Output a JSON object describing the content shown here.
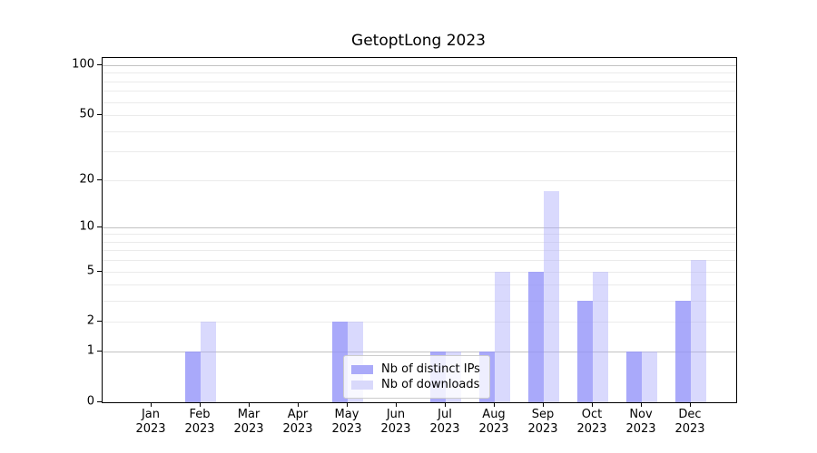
{
  "chart_data": {
    "type": "bar",
    "title": "GetoptLong 2023",
    "categories": [
      "Jan",
      "Feb",
      "Mar",
      "Apr",
      "May",
      "Jun",
      "Jul",
      "Aug",
      "Sep",
      "Oct",
      "Nov",
      "Dec"
    ],
    "year_label": "2023",
    "series": [
      {
        "name": "Nb of distinct IPs",
        "color": "rgba(148,148,249,0.8)",
        "swatch_color": "#aaaaf9",
        "values": [
          0,
          1,
          0,
          0,
          2,
          0,
          1,
          1,
          5,
          3,
          1,
          3
        ]
      },
      {
        "name": "Nb of downloads",
        "color": "rgba(170,170,250,0.45)",
        "swatch_color": "#d9d9fb",
        "values": [
          0,
          2,
          0,
          0,
          2,
          0,
          1,
          5,
          17,
          5,
          1,
          6
        ]
      }
    ],
    "yscale": "log1p",
    "ylim": [
      0,
      110
    ],
    "y_tick_labels": [
      0,
      1,
      2,
      5,
      10,
      20,
      50,
      100
    ],
    "y_grid_major": [
      1,
      10,
      100
    ],
    "y_grid_minor": [
      2,
      3,
      4,
      5,
      6,
      7,
      8,
      9,
      20,
      30,
      40,
      50,
      60,
      70,
      80,
      90
    ],
    "grid": true,
    "legend_position": "lower center",
    "colors": {
      "grid_major": "#c2c2c2",
      "grid_minor": "#ebebeb",
      "axis": "#000000",
      "background": "#ffffff"
    }
  }
}
